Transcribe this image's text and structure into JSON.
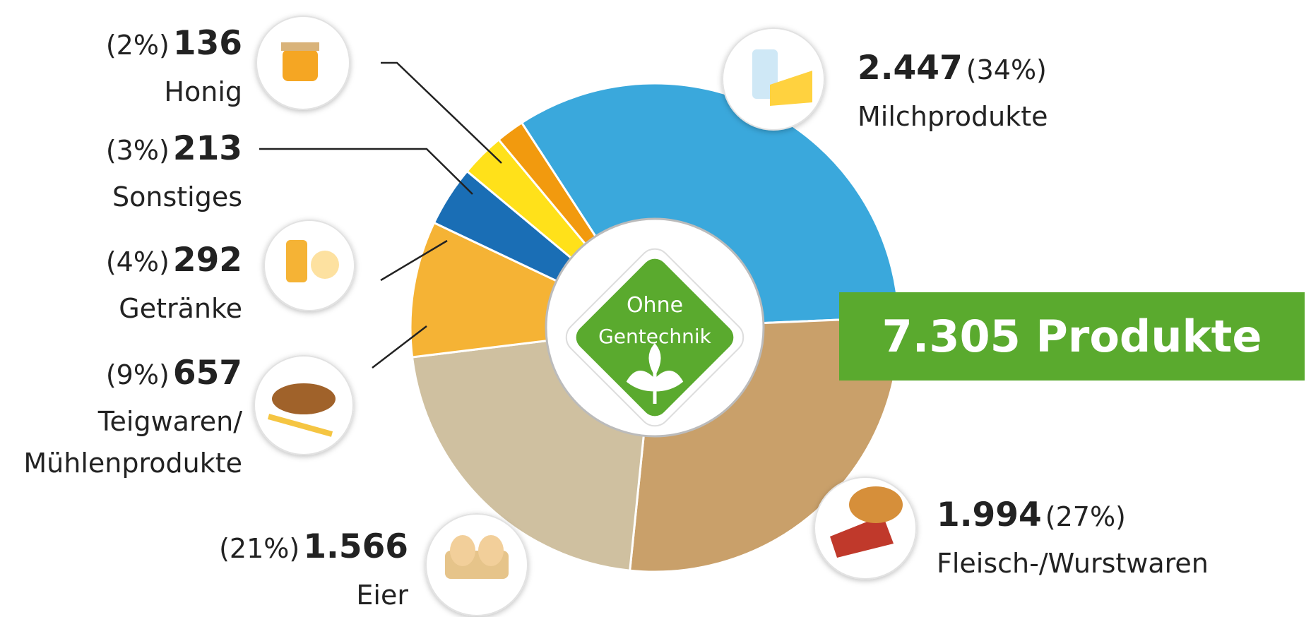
{
  "chart_data": {
    "type": "donut",
    "total_label": "7.305 Produkte",
    "center_lines": [
      "Ohne",
      "Gentechnik"
    ],
    "categories": [
      "Milchprodukte",
      "Fleisch-/Wurstwaren",
      "Eier",
      "Teigwaren/\nMühlenprodukte",
      "Getränke",
      "Sonstiges",
      "Honig"
    ],
    "values": [
      2447,
      1994,
      1566,
      657,
      292,
      213,
      136
    ],
    "value_labels": [
      "2.447",
      "1.994",
      "1.566",
      "657",
      "292",
      "213",
      "136"
    ],
    "percentage_labels": [
      "(34%)",
      "(27%)",
      "(21%)",
      "(9%)",
      "(4%)",
      "(3%)",
      "(2%)"
    ],
    "colors": [
      "#3aa8dc",
      "#c9a06a",
      "#cfc0a0",
      "#f5b335",
      "#1a6eb5",
      "#ffe11a",
      "#f29a0e"
    ]
  }
}
